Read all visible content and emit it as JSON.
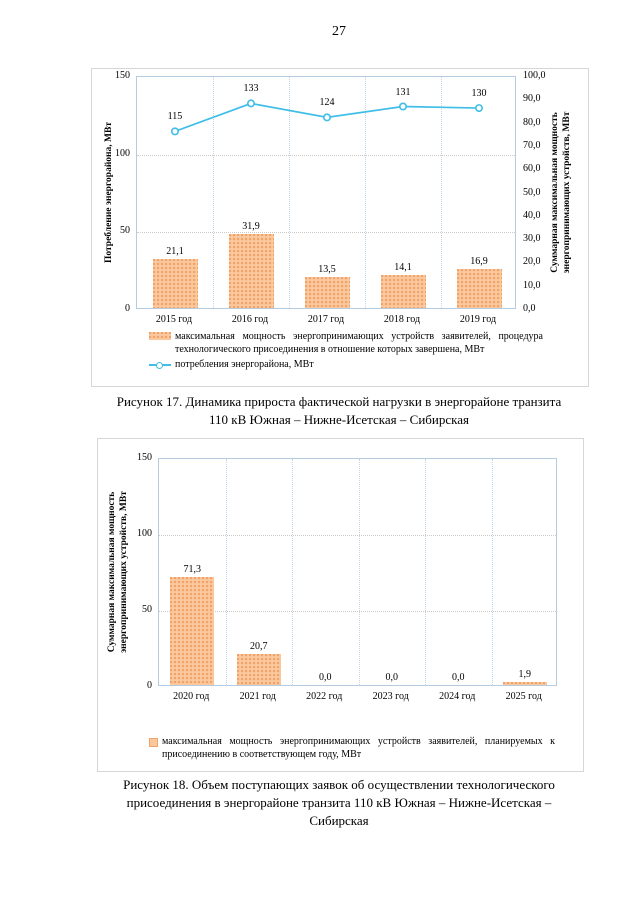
{
  "page_number": "27",
  "figure17": {
    "caption_lines": [
      "Рисунок 17. Динамика прироста фактической нагрузки в энергорайоне транзита",
      "110 кВ Южная – Нижне-Исетская – Сибирская"
    ]
  },
  "figure18": {
    "caption_lines": [
      "Рисунок 18. Объем поступающих заявок об осуществлении технологического",
      "присоединения в энергорайоне транзита 110 кВ Южная – Нижне-Исетская –",
      "Сибирская"
    ]
  },
  "chart_data": [
    {
      "type": "bar",
      "title": "",
      "categories": [
        "2015 год",
        "2016 год",
        "2017 год",
        "2018 год",
        "2019 год"
      ],
      "series": [
        {
          "name": "максимальная мощность энергопринимающих устройств заявителей, процедура технологического присоединения в отношение которых завершена, МВт",
          "type": "bar",
          "axis": "right",
          "values": [
            21.1,
            31.9,
            13.5,
            14.1,
            16.9
          ],
          "labels": [
            "21,1",
            "31,9",
            "13,5",
            "14,1",
            "16,9"
          ]
        },
        {
          "name": "потребления энергорайона, МВт",
          "type": "line",
          "axis": "left",
          "values": [
            115,
            133,
            124,
            131,
            130
          ],
          "labels": [
            "115",
            "133",
            "124",
            "131",
            "130"
          ]
        }
      ],
      "left_axis": {
        "title": "Потребление энергорайона, МВт",
        "min": 0,
        "max": 150,
        "tick_values": [
          150,
          100,
          50,
          0
        ],
        "tick_labels": [
          "150",
          "100",
          "50",
          "0"
        ]
      },
      "right_axis": {
        "title_lines": [
          "Суммарная максимальная мощность",
          "энергопринимающих устройств, МВт"
        ],
        "min": 0,
        "max": 100,
        "tick_values": [
          100,
          90,
          80,
          70,
          60,
          50,
          40,
          30,
          20,
          10,
          0
        ],
        "tick_labels": [
          "100,0",
          "90,0",
          "80,0",
          "70,0",
          "60,0",
          "50,0",
          "40,0",
          "30,0",
          "20,0",
          "10,0",
          "0,0"
        ]
      },
      "legend_position": "bottom",
      "grid": true
    },
    {
      "type": "bar",
      "title": "",
      "categories": [
        "2020 год",
        "2021 год",
        "2022 год",
        "2023 год",
        "2024 год",
        "2025 год"
      ],
      "series": [
        {
          "name": "максимальная мощность энергопринимающих устройств заявителей, планируемых к присоединению  в соответствующем году, МВт",
          "type": "bar",
          "axis": "left",
          "values": [
            71.3,
            20.7,
            0.0,
            0.0,
            0.0,
            1.9
          ],
          "labels": [
            "71,3",
            "20,7",
            "0,0",
            "0,0",
            "0,0",
            "1,9"
          ]
        }
      ],
      "left_axis": {
        "title_lines": [
          "Суммарная максимальная мощность",
          "энергопринимающих устройств, МВт"
        ],
        "min": 0,
        "max": 150,
        "tick_values": [
          150,
          100,
          50,
          0
        ],
        "tick_labels": [
          "150",
          "100",
          "50",
          "0"
        ]
      },
      "legend_position": "bottom",
      "grid": true
    }
  ],
  "colors": {
    "bar_fill": "#fbc79d",
    "bar_dot": "#f0a26b",
    "line": "#3fbee8",
    "plot_border": "#b5cce0",
    "box_border": "#d6d6d6"
  }
}
